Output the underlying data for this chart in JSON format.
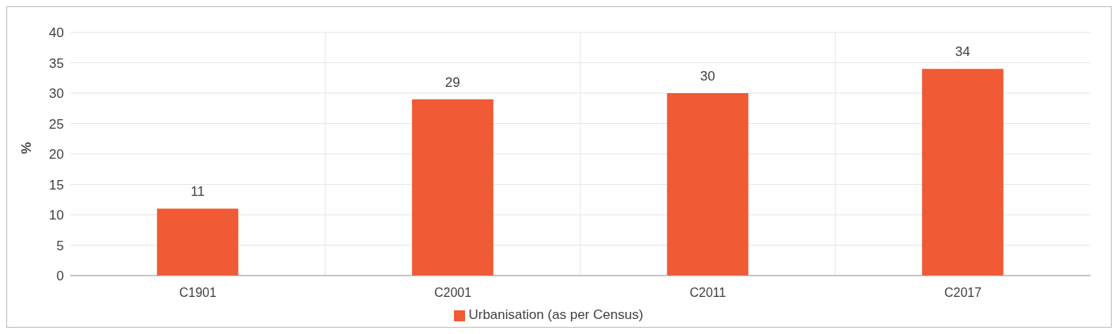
{
  "chart_data": {
    "type": "bar",
    "ylabel": "%",
    "categories": [
      "C1901",
      "C2001",
      "C2011",
      "C2017"
    ],
    "series": [
      {
        "name": "Urbanisation (as per Census)",
        "color": "#f05a35",
        "values": [
          11,
          29,
          30,
          34
        ]
      }
    ],
    "ylim": [
      0,
      40
    ],
    "yticks": [
      0,
      5,
      10,
      15,
      20,
      25,
      30,
      35,
      40
    ],
    "grid": true,
    "legend": "bottom",
    "data_labels": true
  }
}
